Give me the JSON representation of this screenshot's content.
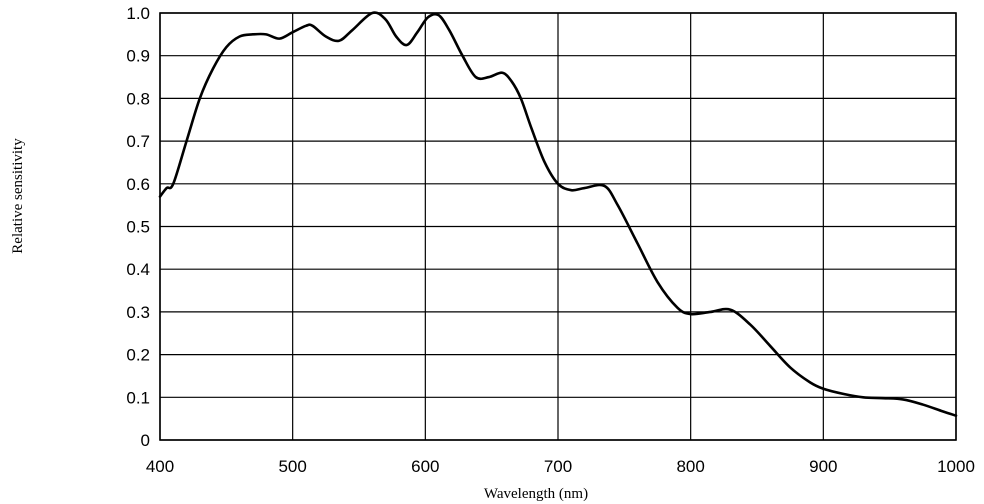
{
  "chart_data": {
    "type": "line",
    "xlabel": "Wavelength (nm)",
    "ylabel": "Relative sensitivity",
    "xlim": [
      400,
      1000
    ],
    "ylim": [
      0,
      1.0
    ],
    "x_ticks": [
      "400",
      "500",
      "600",
      "700",
      "800",
      "900",
      "1000"
    ],
    "y_ticks": [
      "0",
      "0.1",
      "0.2",
      "0.3",
      "0.4",
      "0.5",
      "0.6",
      "0.7",
      "0.8",
      "0.9",
      "1.0"
    ],
    "grid": true,
    "series": [
      {
        "color": "#000000",
        "x": [
          400,
          405,
          410,
          420,
          430,
          440,
          450,
          460,
          470,
          480,
          490,
          500,
          510,
          515,
          525,
          535,
          545,
          560,
          570,
          578,
          586,
          594,
          602,
          610,
          618,
          628,
          638,
          648,
          658,
          665,
          672,
          680,
          690,
          700,
          710,
          720,
          735,
          745,
          760,
          775,
          790,
          800,
          815,
          830,
          845,
          860,
          875,
          890,
          900,
          915,
          930,
          945,
          960,
          975,
          990,
          1000
        ],
        "y": [
          0.57,
          0.59,
          0.6,
          0.7,
          0.8,
          0.87,
          0.92,
          0.945,
          0.95,
          0.95,
          0.94,
          0.955,
          0.97,
          0.97,
          0.945,
          0.935,
          0.96,
          1.0,
          0.985,
          0.945,
          0.925,
          0.955,
          0.99,
          0.995,
          0.96,
          0.9,
          0.85,
          0.85,
          0.86,
          0.84,
          0.8,
          0.73,
          0.65,
          0.6,
          0.585,
          0.59,
          0.595,
          0.55,
          0.46,
          0.37,
          0.31,
          0.295,
          0.3,
          0.305,
          0.27,
          0.22,
          0.17,
          0.135,
          0.12,
          0.108,
          0.1,
          0.098,
          0.095,
          0.083,
          0.067,
          0.057
        ]
      }
    ]
  }
}
